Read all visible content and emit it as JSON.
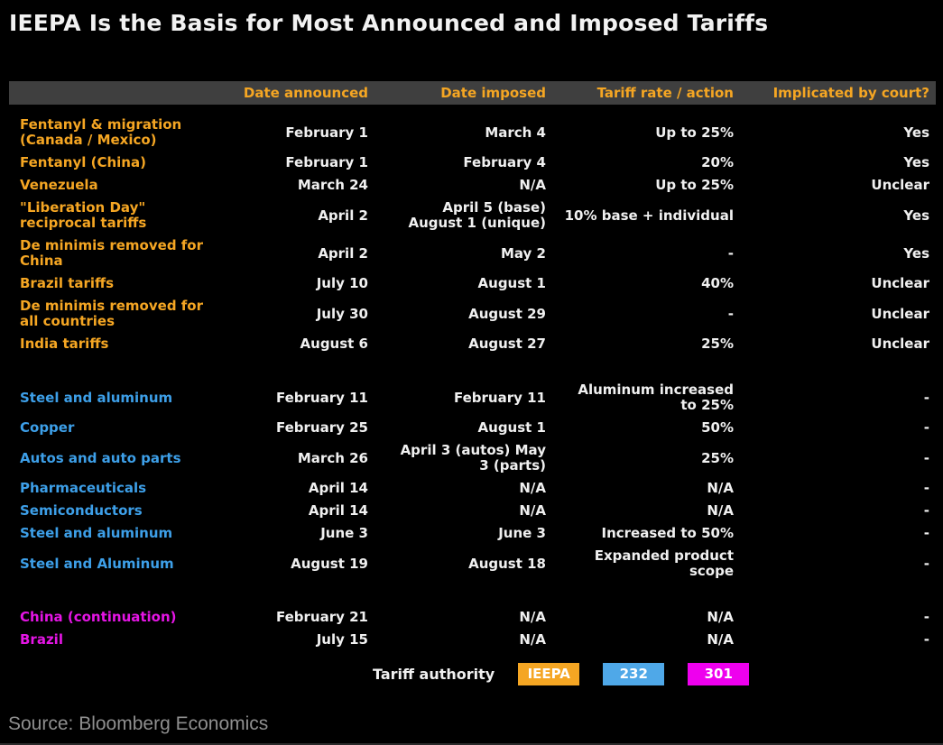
{
  "title": "IEEPA Is the Basis for Most Announced and Imposed Tariffs",
  "source": "Source: Bloomberg Economics",
  "colors": {
    "background": "#000000",
    "header_bar": "#3f3f3f",
    "header_text": "#f5a623",
    "ieepa_orange": "#f5a623",
    "section232_blue": "#3d9fe8",
    "section301_magenta": "#e515e5",
    "body_text": "#f0f0f0",
    "source_text": "#8f8f8f"
  },
  "chart_data": {
    "type": "table",
    "title": "IEEPA Is the Basis for Most Announced and Imposed Tariffs",
    "columns": [
      "Date announced",
      "Date imposed",
      "Tariff rate / action",
      "Implicated by court?"
    ],
    "legend": {
      "label": "Tariff authority",
      "items": [
        {
          "label": "IEEPA",
          "color": "#f5a623"
        },
        {
          "label": "232",
          "color": "#4fa8e8"
        },
        {
          "label": "301",
          "color": "#ee00ee"
        }
      ]
    },
    "groups": [
      {
        "authority": "IEEPA",
        "color": "#f5a623",
        "rows": [
          {
            "label": "Fentanyl & migration\n(Canada / Mexico)",
            "announced": "February 1",
            "imposed": "March 4",
            "rate": "Up to 25%",
            "court": "Yes"
          },
          {
            "label": "Fentanyl (China)",
            "announced": "February 1",
            "imposed": "February 4",
            "rate": "20%",
            "court": "Yes"
          },
          {
            "label": "Venezuela",
            "announced": "March 24",
            "imposed": "N/A",
            "rate": "Up to 25%",
            "court": "Unclear"
          },
          {
            "label": "\"Liberation Day\"\nreciprocal tariffs",
            "announced": "April 2",
            "imposed": "April 5 (base)\nAugust 1 (unique)",
            "rate": "10% base + individual",
            "court": "Yes"
          },
          {
            "label": "De minimis removed for\nChina",
            "announced": "April 2",
            "imposed": "May 2",
            "rate": "-",
            "court": "Yes"
          },
          {
            "label": "Brazil tariffs",
            "announced": "July 10",
            "imposed": "August 1",
            "rate": "40%",
            "court": "Unclear"
          },
          {
            "label": "De minimis removed for\nall countries",
            "announced": "July 30",
            "imposed": "August 29",
            "rate": "-",
            "court": "Unclear"
          },
          {
            "label": "India tariffs",
            "announced": "August 6",
            "imposed": "August 27",
            "rate": "25%",
            "court": "Unclear"
          }
        ]
      },
      {
        "authority": "232",
        "color": "#3d9fe8",
        "rows": [
          {
            "label": "Steel and aluminum",
            "announced": "February 11",
            "imposed": "February 11",
            "rate": "Aluminum increased\nto 25%",
            "court": "-"
          },
          {
            "label": "Copper",
            "announced": "February 25",
            "imposed": "August 1",
            "rate": "50%",
            "court": "-"
          },
          {
            "label": "Autos and auto parts",
            "announced": "March 26",
            "imposed": "April 3 (autos) May\n3 (parts)",
            "rate": "25%",
            "court": "-"
          },
          {
            "label": "Pharmaceuticals",
            "announced": "April 14",
            "imposed": "N/A",
            "rate": "N/A",
            "court": "-"
          },
          {
            "label": "Semiconductors",
            "announced": "April 14",
            "imposed": "N/A",
            "rate": "N/A",
            "court": "-"
          },
          {
            "label": "Steel and aluminum",
            "announced": "June 3",
            "imposed": "June 3",
            "rate": "Increased to 50%",
            "court": "-"
          },
          {
            "label": "Steel and Aluminum",
            "announced": "August 19",
            "imposed": "August 18",
            "rate": "Expanded product\nscope",
            "court": "-"
          }
        ]
      },
      {
        "authority": "301",
        "color": "#e515e5",
        "rows": [
          {
            "label": "China (continuation)",
            "announced": "February 21",
            "imposed": "N/A",
            "rate": "N/A",
            "court": "-"
          },
          {
            "label": "Brazil",
            "announced": "July 15",
            "imposed": "N/A",
            "rate": "N/A",
            "court": "-"
          }
        ]
      }
    ]
  }
}
